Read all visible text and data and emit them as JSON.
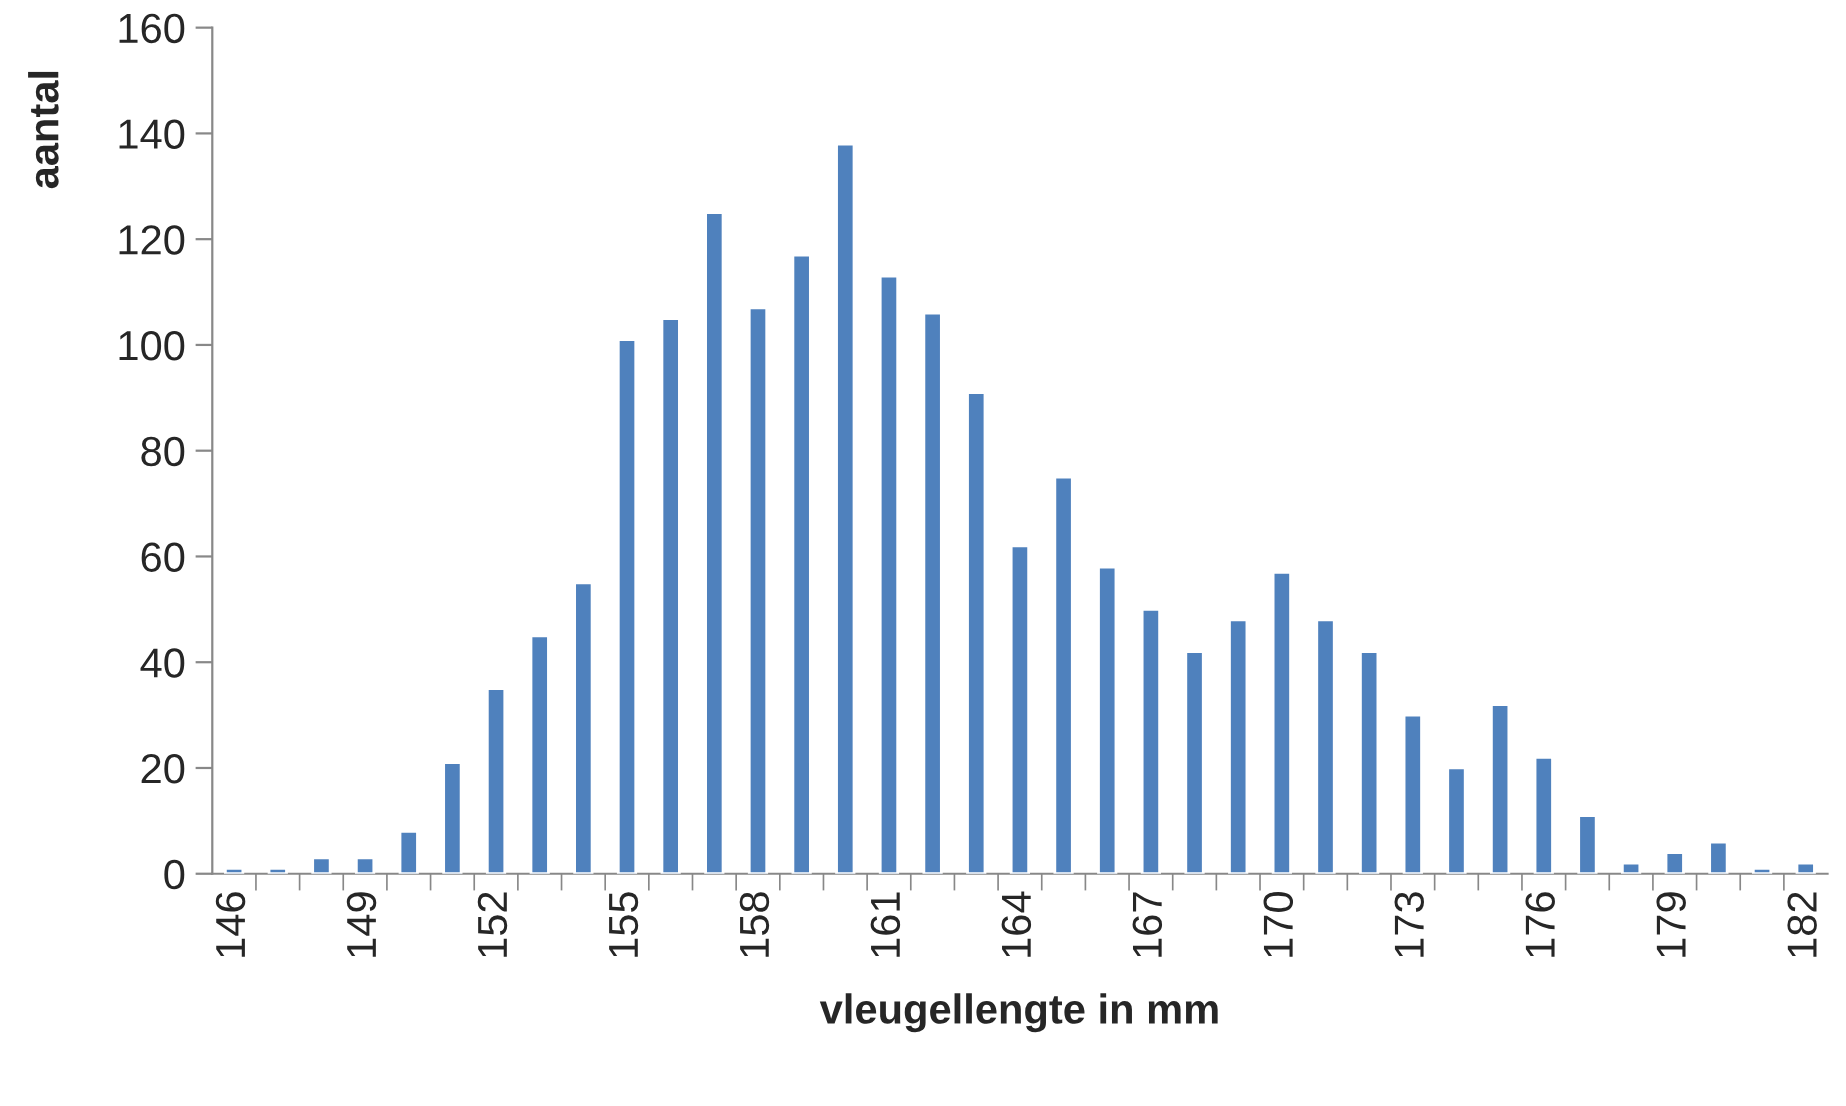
{
  "chart_data": {
    "type": "bar",
    "xlabel": "vleugellengte in mm",
    "ylabel": "aantal",
    "categories": [
      "146",
      null,
      null,
      "149",
      null,
      null,
      "152",
      null,
      null,
      "155",
      null,
      null,
      "158",
      null,
      null,
      "161",
      null,
      null,
      "164",
      null,
      null,
      "167",
      null,
      null,
      "170",
      null,
      null,
      "173",
      null,
      null,
      "176",
      null,
      null,
      "179",
      null,
      null,
      "182"
    ],
    "values": [
      1,
      1,
      3,
      3,
      8,
      21,
      35,
      45,
      55,
      101,
      105,
      125,
      107,
      117,
      138,
      113,
      106,
      91,
      62,
      75,
      58,
      50,
      42,
      48,
      57,
      48,
      42,
      30,
      20,
      32,
      22,
      11,
      2,
      4,
      6,
      1,
      2
    ],
    "color": "#4f81bd",
    "ylim": [
      0,
      160
    ],
    "yticks": [
      0,
      20,
      40,
      60,
      80,
      100,
      120,
      140,
      160
    ],
    "grid": false,
    "legend": false
  }
}
